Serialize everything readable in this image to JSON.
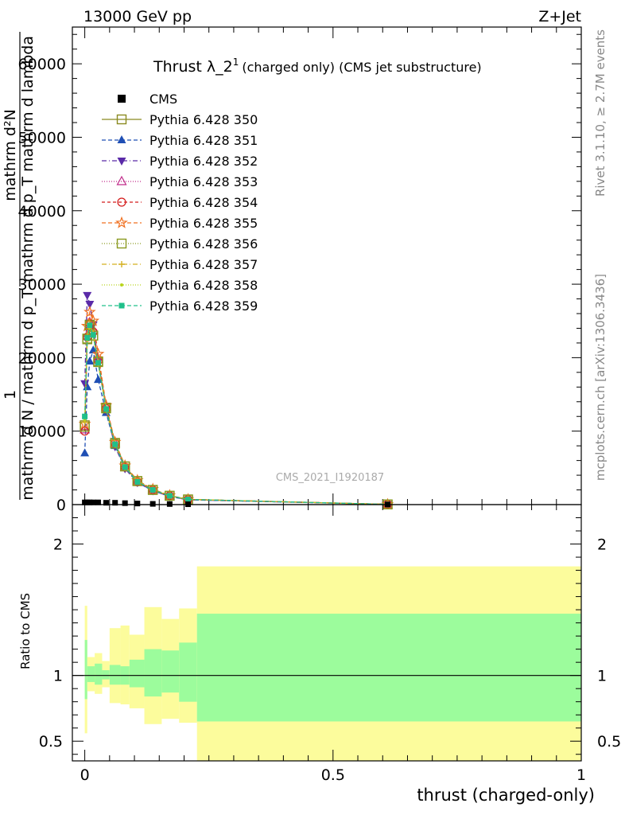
{
  "header": {
    "left": "13000 GeV pp",
    "right": "Z+Jet"
  },
  "side_labels": {
    "rivet": "Rivet 3.1.10, ≥ 2.7M events",
    "mcplots": "mcplots.cern.ch [arXiv:1306.3436]"
  },
  "chart_data": [
    {
      "type": "line",
      "title_main": "Thrust λ_2",
      "title_sup": "1",
      "title_rest": "(charged only) (CMS jet substructure)",
      "ylabel_numerator": "mathrm d²N",
      "ylabel_denominator": "mathrm d p_T mathrm d lambda",
      "ylabel_left_numerator": "1",
      "ylabel_left_denominator": "mathrm d N / mathrm d p_T",
      "watermark": "CMS_2021_I1920187",
      "xlim": [
        -0.025,
        1.0
      ],
      "ylim": [
        0,
        65000
      ],
      "y_ticks": [
        {
          "value": 0,
          "label": "0"
        },
        {
          "value": 10000,
          "label": "10000"
        },
        {
          "value": 20000,
          "label": "20000"
        },
        {
          "value": 30000,
          "label": "30000"
        },
        {
          "value": 40000,
          "label": "40000"
        },
        {
          "value": 50000,
          "label": "50000"
        },
        {
          "value": 60000,
          "label": "60000"
        }
      ],
      "x": [
        0.0,
        0.005,
        0.01,
        0.017,
        0.027,
        0.043,
        0.061,
        0.081,
        0.106,
        0.137,
        0.171,
        0.208,
        0.61
      ],
      "cms": [
        300,
        300,
        300,
        300,
        300,
        250,
        250,
        200,
        150,
        100,
        80,
        50,
        10
      ],
      "series": [
        {
          "name": "Pythia 6.428 350",
          "color": "#8a8a20",
          "dash": "",
          "marker": "square-open",
          "values": [
            10800,
            22500,
            24500,
            23000,
            19500,
            13200,
            8400,
            5200,
            3200,
            2000,
            1200,
            700,
            30
          ]
        },
        {
          "name": "Pythia 6.428 351",
          "color": "#1f4fb4",
          "dash": "5,3",
          "marker": "triangle-up",
          "values": [
            7000,
            16000,
            19500,
            21000,
            17000,
            12500,
            8000,
            5000,
            3000,
            1900,
            1100,
            650,
            30
          ]
        },
        {
          "name": "Pythia 6.428 352",
          "color": "#5a2aa8",
          "dash": "6,3,1,3",
          "marker": "triangle-down",
          "values": [
            16500,
            28500,
            27300,
            24500,
            19500,
            12800,
            7900,
            4900,
            3000,
            1900,
            1100,
            650,
            30
          ]
        },
        {
          "name": "Pythia 6.428 353",
          "color": "#c02a8a",
          "dash": "1,2",
          "marker": "triangle-open",
          "values": [
            10200,
            23000,
            24800,
            23800,
            19800,
            13300,
            8300,
            5100,
            3200,
            2000,
            1200,
            700,
            30
          ]
        },
        {
          "name": "Pythia 6.428 354",
          "color": "#d41a1a",
          "dash": "4,3",
          "marker": "circle-open",
          "values": [
            10000,
            22800,
            24600,
            23500,
            19600,
            13100,
            8300,
            5100,
            3100,
            2000,
            1200,
            700,
            30
          ]
        },
        {
          "name": "Pythia 6.428 355",
          "color": "#f07020",
          "dash": "5,3",
          "marker": "star-open",
          "values": [
            11000,
            24300,
            26200,
            25000,
            20500,
            13500,
            8500,
            5300,
            3300,
            2100,
            1250,
            720,
            30
          ]
        },
        {
          "name": "Pythia 6.428 356",
          "color": "#8a9a20",
          "dash": "1,2",
          "marker": "square-open",
          "values": [
            10600,
            22600,
            24400,
            23000,
            19400,
            13100,
            8300,
            5200,
            3200,
            2000,
            1200,
            700,
            30
          ]
        },
        {
          "name": "Pythia 6.428 357",
          "color": "#d4b020",
          "dash": "6,3,1,3",
          "marker": "cross",
          "values": [
            11200,
            23000,
            24600,
            23300,
            19300,
            13000,
            8200,
            5100,
            3200,
            2000,
            1200,
            700,
            30
          ]
        },
        {
          "name": "Pythia 6.428 358",
          "color": "#b8d41a",
          "dash": "1,2",
          "marker": "dot",
          "values": [
            11500,
            22400,
            24100,
            22900,
            19100,
            12900,
            8200,
            5100,
            3100,
            2000,
            1200,
            700,
            30
          ]
        },
        {
          "name": "Pythia 6.428 359",
          "color": "#20c08a",
          "dash": "5,3",
          "marker": "square-filled",
          "values": [
            12000,
            22700,
            24400,
            23100,
            19300,
            13000,
            8200,
            5100,
            3100,
            2000,
            1200,
            700,
            30
          ]
        }
      ],
      "legend": {
        "data_label": "CMS",
        "placement": "top-left"
      }
    },
    {
      "type": "area",
      "ylabel": "Ratio to CMS",
      "xlabel": "thrust (charged-only)",
      "xlim": [
        -0.025,
        1.0
      ],
      "ylim": [
        0.35,
        2.3
      ],
      "y_ticks": [
        {
          "value": 0.5,
          "label": "0.5"
        },
        {
          "value": 1,
          "label": "1"
        },
        {
          "value": 2,
          "label": "2"
        }
      ],
      "x_ticks": [
        {
          "value": 0,
          "label": "0"
        },
        {
          "value": 0.5,
          "label": "0.5"
        },
        {
          "value": 1,
          "label": "1"
        }
      ],
      "reference": 1.0,
      "bands": [
        {
          "x0": 0.0,
          "x1": 0.005,
          "stat_lo": 0.82,
          "stat_hi": 1.27,
          "tot_lo": 0.56,
          "tot_hi": 1.53
        },
        {
          "x0": 0.005,
          "x1": 0.02,
          "stat_lo": 0.95,
          "stat_hi": 1.07,
          "tot_lo": 0.88,
          "tot_hi": 1.14
        },
        {
          "x0": 0.02,
          "x1": 0.035,
          "stat_lo": 0.93,
          "stat_hi": 1.09,
          "tot_lo": 0.86,
          "tot_hi": 1.17
        },
        {
          "x0": 0.035,
          "x1": 0.05,
          "stat_lo": 0.97,
          "stat_hi": 1.04,
          "tot_lo": 0.91,
          "tot_hi": 1.11
        },
        {
          "x0": 0.05,
          "x1": 0.072,
          "stat_lo": 0.93,
          "stat_hi": 1.08,
          "tot_lo": 0.79,
          "tot_hi": 1.36
        },
        {
          "x0": 0.072,
          "x1": 0.09,
          "stat_lo": 0.93,
          "stat_hi": 1.07,
          "tot_lo": 0.78,
          "tot_hi": 1.38
        },
        {
          "x0": 0.09,
          "x1": 0.12,
          "stat_lo": 0.91,
          "stat_hi": 1.12,
          "tot_lo": 0.75,
          "tot_hi": 1.31
        },
        {
          "x0": 0.12,
          "x1": 0.155,
          "stat_lo": 0.84,
          "stat_hi": 1.2,
          "tot_lo": 0.63,
          "tot_hi": 1.52
        },
        {
          "x0": 0.155,
          "x1": 0.19,
          "stat_lo": 0.87,
          "stat_hi": 1.19,
          "tot_lo": 0.67,
          "tot_hi": 1.43
        },
        {
          "x0": 0.19,
          "x1": 0.226,
          "stat_lo": 0.8,
          "stat_hi": 1.25,
          "tot_lo": 0.64,
          "tot_hi": 1.51
        },
        {
          "x0": 0.226,
          "x1": 1.0,
          "stat_lo": 0.65,
          "stat_hi": 1.47,
          "tot_lo": 0.35,
          "tot_hi": 1.83
        }
      ],
      "colors": {
        "stat": "#9cfc9c",
        "total": "#fcfc9c"
      }
    }
  ]
}
